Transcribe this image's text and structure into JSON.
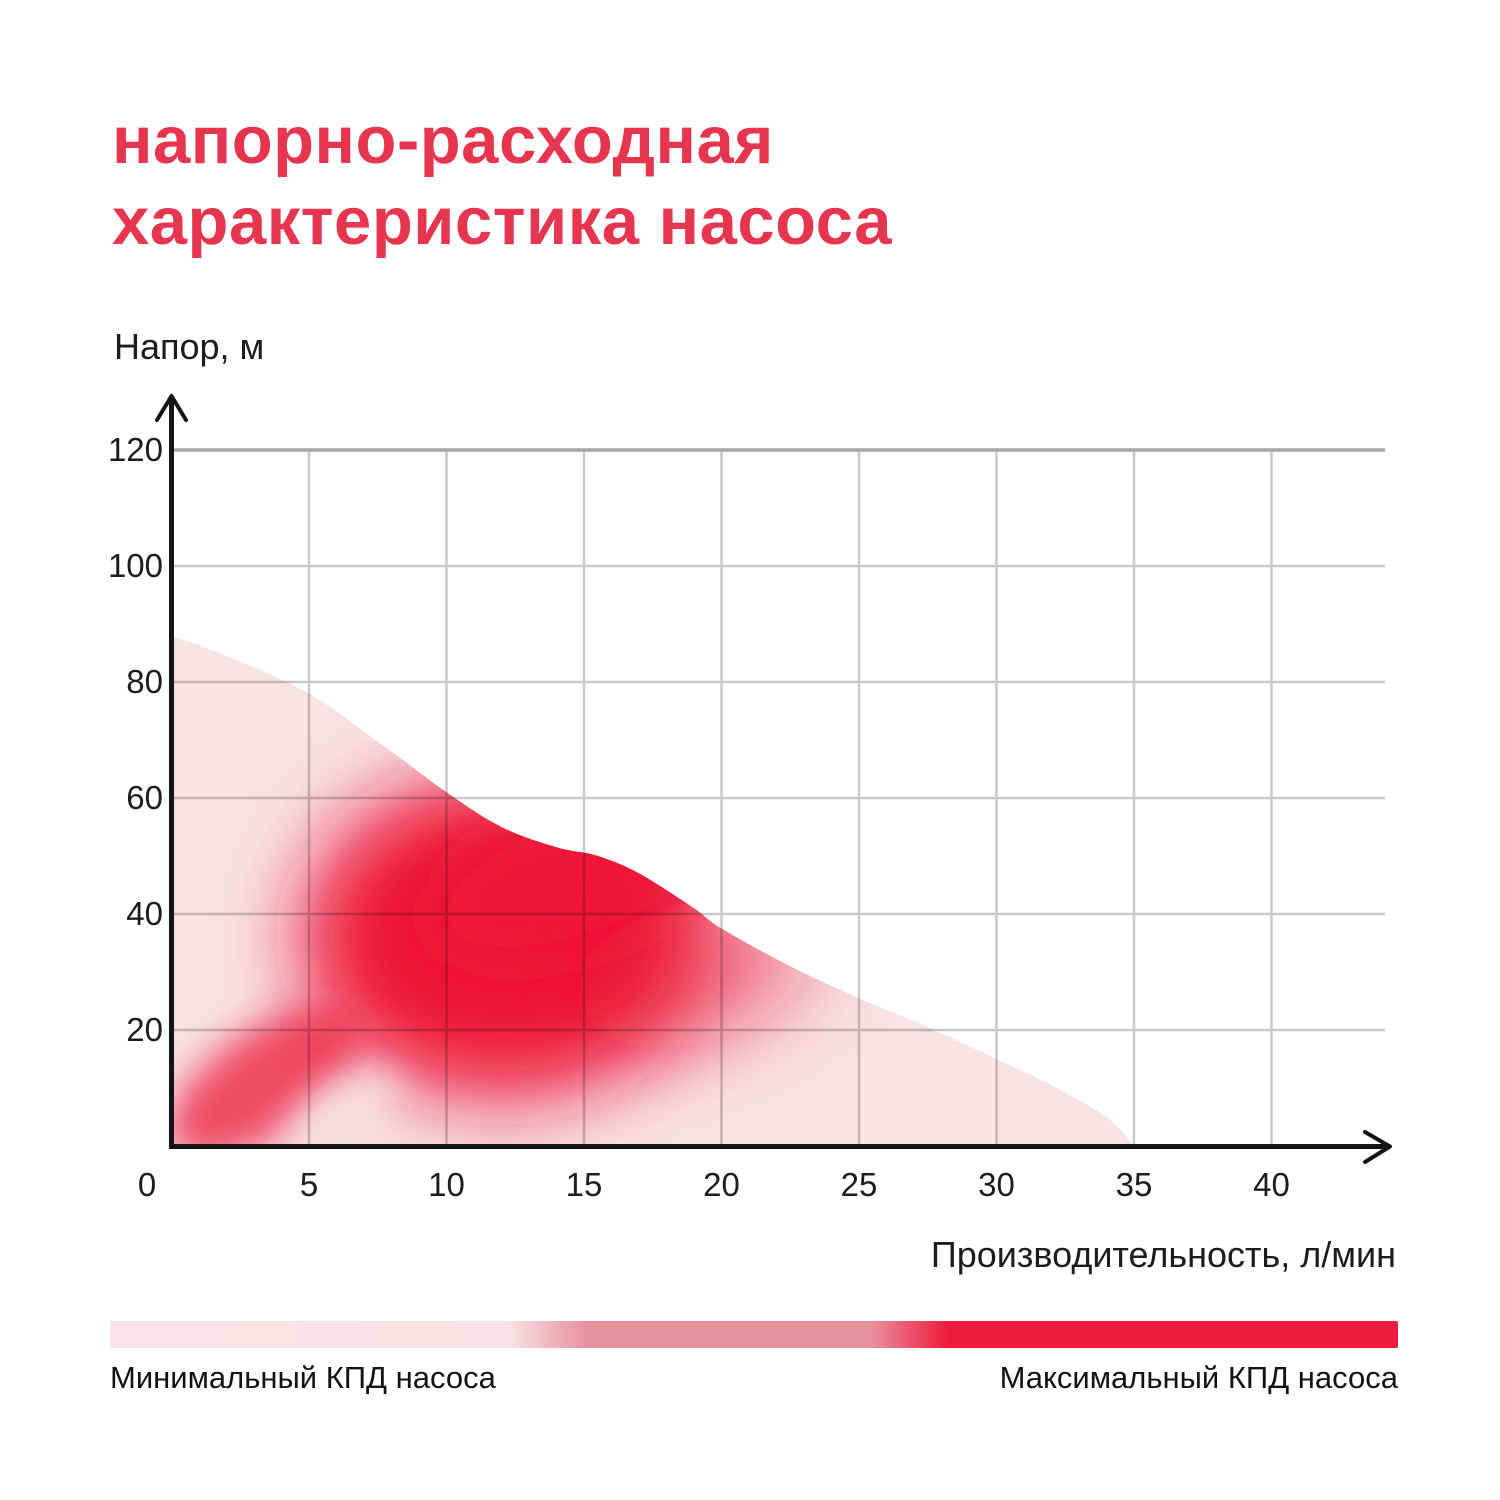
{
  "chart_data": {
    "type": "area",
    "title": "напорно-расходная характеристика насоса",
    "title_lines": [
      "напорно-расходная",
      "характеристика насоса"
    ],
    "ylabel": "Напор, м",
    "xlabel": "Производительность, л/мин",
    "xticks": [
      0,
      5,
      10,
      15,
      20,
      25,
      30,
      35,
      40
    ],
    "yticks": [
      120,
      100,
      80,
      60,
      40,
      20
    ],
    "xlim": [
      0,
      44
    ],
    "ylim": [
      0,
      130
    ],
    "grid": true,
    "curve_points": [
      [
        0,
        88
      ],
      [
        2,
        84.5
      ],
      [
        5,
        78
      ],
      [
        8,
        68
      ],
      [
        10,
        61
      ],
      [
        12,
        55
      ],
      [
        14,
        51.5
      ],
      [
        15.5,
        50
      ],
      [
        17,
        47
      ],
      [
        19,
        41
      ],
      [
        20,
        37.5
      ],
      [
        22.5,
        31
      ],
      [
        25,
        25.5
      ],
      [
        27.5,
        20.5
      ],
      [
        30,
        15
      ],
      [
        32,
        10.5
      ],
      [
        34,
        5
      ],
      [
        35,
        0
      ]
    ],
    "colors": {
      "accent": "#e6364f",
      "hot_red": "#ee1b3d",
      "base_pink": "#f7e2e6",
      "gridline": "#c9c9c9",
      "gridline_top": "#a6a6a6",
      "axis": "#141414",
      "text": "#1c1c1e"
    },
    "efficiency_field": {
      "base_color": "#f7e2e6",
      "hot_color": "#ee1538",
      "blobs": [
        {
          "cq": 12,
          "ch": 36,
          "rq": 7.3,
          "rh": 28,
          "rot": 0,
          "color": "#ee1538",
          "opacity": 1,
          "blur": "blur-lg"
        },
        {
          "cq": 15,
          "ch": 47,
          "rq": 6,
          "rh": 13,
          "rot": -20,
          "color": "#ee1538",
          "opacity": 0.95,
          "blur": "blur-md"
        },
        {
          "cq": 3.4,
          "ch": 11,
          "rq": 4.1,
          "rh": 9,
          "rot": -35,
          "color": "#ee2743",
          "opacity": 0.8,
          "blur": "blur-sm"
        },
        {
          "cq": 19,
          "ch": 30,
          "rq": 4.5,
          "rh": 12,
          "rot": -15,
          "color": "#ee1538",
          "opacity": 0.5,
          "blur": "blur-lg"
        },
        {
          "cq": 6.3,
          "ch": 6,
          "rq": 2.2,
          "rh": 5,
          "rot": -30,
          "color": "#f7e2e6",
          "opacity": 0.85,
          "blur": "blur-sm"
        }
      ]
    },
    "legend": {
      "min_label": "Минимальный КПД насоса",
      "max_label": "Максимальный КПД насоса",
      "gradient_stops": [
        [
          "0%",
          "#f8e4e8"
        ],
        [
          "31%",
          "#f7e1e6"
        ],
        [
          "37%",
          "#e9909f"
        ],
        [
          "59%",
          "#e9909f"
        ],
        [
          "65%",
          "#ee1b3d"
        ],
        [
          "100%",
          "#ee1b3d"
        ]
      ]
    }
  }
}
